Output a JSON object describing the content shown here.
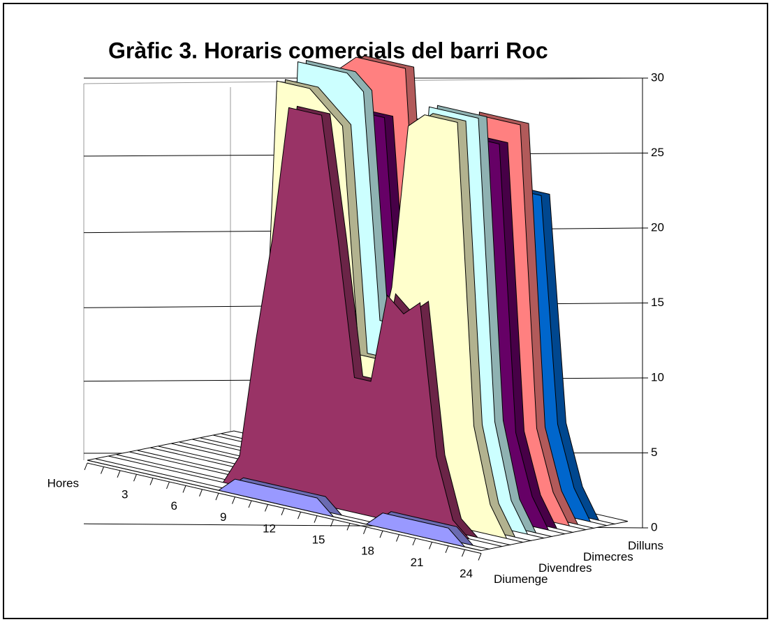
{
  "chart_data": {
    "type": "area3d",
    "title": "Gràfic 3. Horaris comercials del barri Roc",
    "categories": [
      "Hores",
      null,
      null,
      "3",
      null,
      null,
      "6",
      null,
      null,
      "9",
      null,
      null,
      "12",
      null,
      null,
      "15",
      null,
      null,
      "18",
      null,
      null,
      "21",
      null,
      null,
      "24"
    ],
    "series": [
      {
        "name": "Dilluns",
        "color": "#0066cc",
        "values": [
          0,
          0,
          0,
          0,
          0,
          0,
          0,
          0,
          0,
          24,
          24,
          24,
          24,
          24,
          9,
          9,
          9,
          21,
          21,
          21,
          21,
          6,
          2,
          0,
          0
        ]
      },
      {
        "name": null,
        "color": "#ff8080",
        "values": [
          0,
          0,
          0,
          0,
          0,
          0,
          0,
          0,
          0,
          27,
          28,
          28,
          28,
          28,
          10,
          10,
          10,
          26,
          26,
          26,
          26,
          6,
          2,
          0,
          0
        ]
      },
      {
        "name": "Dimecres",
        "color": "#660066",
        "values": [
          0,
          0,
          0,
          0,
          0,
          0,
          0,
          0,
          0,
          25,
          25,
          25,
          25,
          25,
          10,
          10,
          10,
          25,
          25,
          25,
          25,
          6,
          2,
          0,
          0
        ]
      },
      {
        "name": null,
        "color": "#ccffff",
        "values": [
          0,
          0,
          0,
          0,
          0,
          0,
          0,
          0,
          0,
          28,
          28,
          28,
          28,
          27,
          12,
          12,
          12,
          27,
          27,
          27,
          27,
          7,
          2,
          0,
          0
        ]
      },
      {
        "name": "Divendres",
        "color": "#ffffcc",
        "values": [
          0,
          0,
          0,
          0,
          0,
          0,
          0,
          0,
          0,
          27,
          27,
          27,
          26,
          25,
          10,
          10,
          15,
          26,
          27,
          27,
          27,
          7,
          2,
          0,
          0
        ]
      },
      {
        "name": null,
        "color": "#993366",
        "values": [
          0,
          0,
          0,
          0,
          0,
          0,
          0,
          0,
          2,
          10,
          17,
          26,
          26,
          26,
          18,
          9,
          9,
          15,
          14,
          15,
          5,
          1,
          0,
          0,
          0
        ]
      },
      {
        "name": "Diumenge",
        "color": "#9999ff",
        "values": [
          0,
          0,
          0,
          0,
          0,
          0,
          0,
          0,
          0,
          1,
          1,
          1,
          1,
          1,
          1,
          0,
          0,
          0,
          1,
          1,
          1,
          1,
          1,
          0,
          0
        ]
      }
    ],
    "ylim": [
      0,
      30
    ],
    "yticks": [
      0,
      5,
      10,
      15,
      20,
      25,
      30
    ],
    "grid": true
  }
}
